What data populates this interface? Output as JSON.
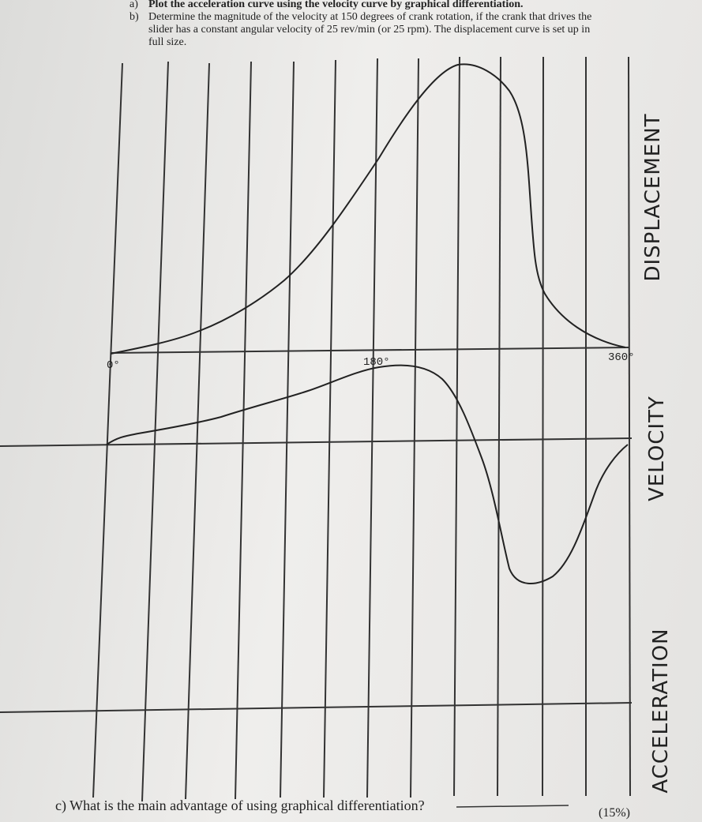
{
  "header": {
    "part_a": {
      "marker": "a)",
      "text": "Plot the acceleration curve using the velocity curve by graphical differentiation."
    },
    "part_b": {
      "marker": "b)",
      "text": "Determine the magnitude of the velocity at 150 degrees of crank rotation, if the crank that drives the slider has a constant angular velocity of 25 rev/min (or 25 rpm). The displacement curve is set up in full size."
    }
  },
  "diagram": {
    "angle_labels": [
      "0°",
      "180°",
      "360°"
    ],
    "curve_titles": {
      "displacement": "DISPLACEMENT",
      "velocity": "VELOCITY",
      "acceleration": "ACCELERATION"
    }
  },
  "footer": {
    "part_c": "c) What is the main advantage of using graphical differentiation?",
    "points": "(15%)"
  }
}
